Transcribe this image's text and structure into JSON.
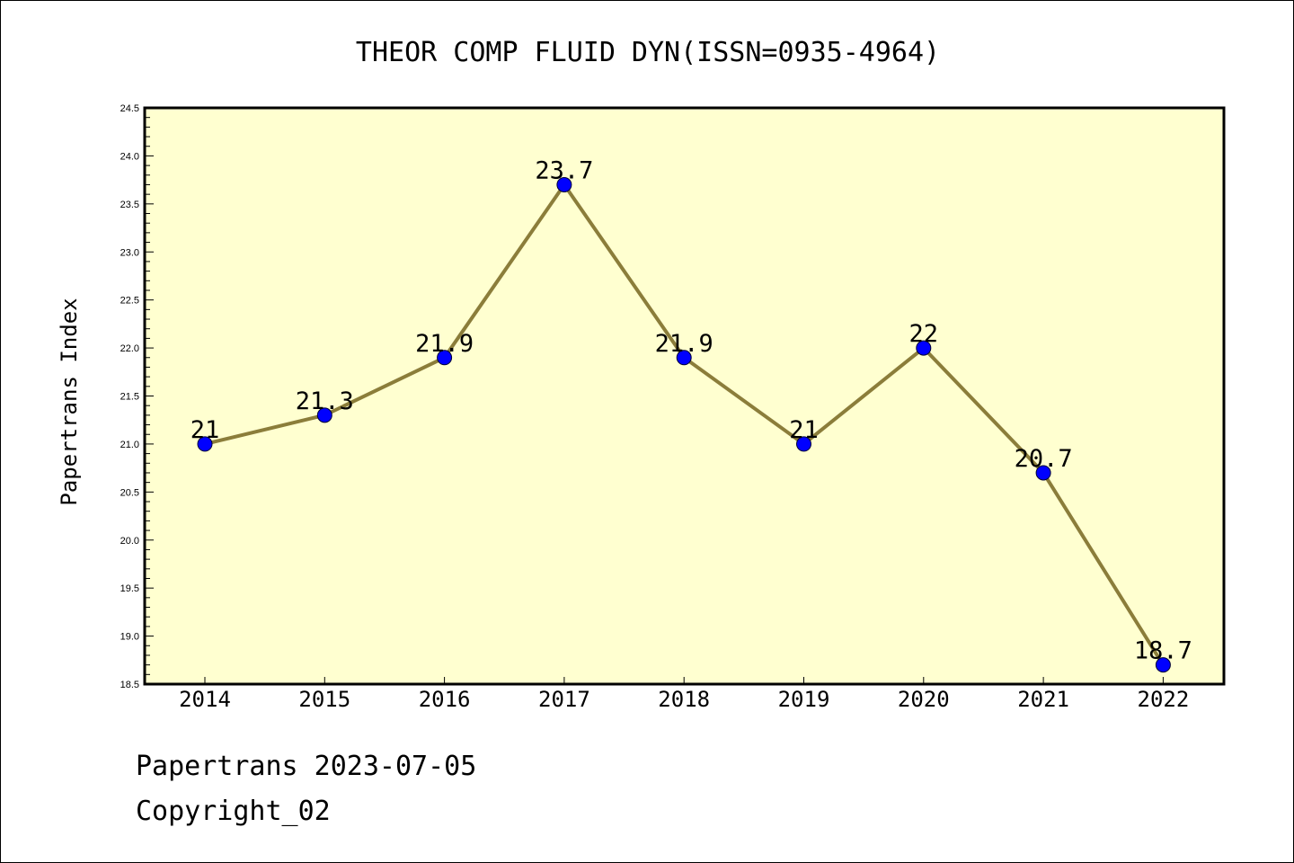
{
  "footer": {
    "line1": "Papertrans 2023-07-05",
    "line2": "Copyright_02"
  },
  "chart_data": {
    "type": "line",
    "title": "THEOR COMP FLUID DYN(ISSN=0935-4964)",
    "xlabel": "",
    "ylabel": "Papertrans Index",
    "categories": [
      "2014",
      "2015",
      "2016",
      "2017",
      "2018",
      "2019",
      "2020",
      "2021",
      "2022"
    ],
    "values": [
      21,
      21.3,
      21.9,
      23.7,
      21.9,
      21,
      22,
      20.7,
      18.7
    ],
    "data_labels": [
      "21",
      "21.3",
      "21.9",
      "23.7",
      "21.9",
      "21",
      "22",
      "20.7",
      "18.7"
    ],
    "ylim": [
      18.5,
      24.5
    ],
    "yticks": [
      "18.5",
      "19.0",
      "19.5",
      "20.0",
      "20.5",
      "21.0",
      "21.5",
      "22.0",
      "22.5",
      "23.0",
      "23.5",
      "24.0",
      "24.5"
    ],
    "grid": false,
    "legend": "none",
    "colors": {
      "plot_background": "#ffffd0",
      "line": "#8b7d3a",
      "marker": "#0000ff",
      "axis": "#000000"
    }
  }
}
